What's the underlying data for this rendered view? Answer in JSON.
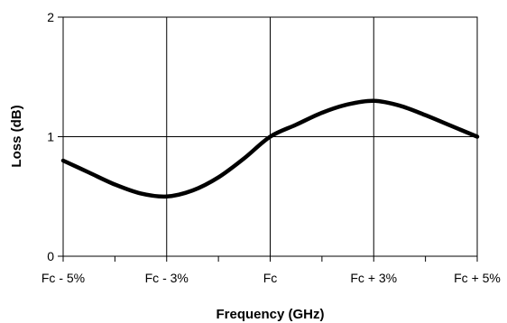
{
  "chart_data": {
    "type": "line",
    "title": "",
    "xlabel": "Frequency (GHz)",
    "ylabel": "Loss (dB)",
    "x_tick_labels": [
      "Fc - 5%",
      "Fc - 3%",
      "Fc",
      "Fc + 3%",
      "Fc + 5%"
    ],
    "y_tick_labels": [
      "0",
      "1",
      "2"
    ],
    "ylim": [
      0,
      2
    ],
    "grid": true,
    "legend": "none",
    "series": [
      {
        "color": "#000000",
        "points": [
          {
            "x": 0.0,
            "y": 0.8
          },
          {
            "x": 0.25,
            "y": 0.7
          },
          {
            "x": 0.5,
            "y": 0.6
          },
          {
            "x": 0.75,
            "y": 0.525
          },
          {
            "x": 1.0,
            "y": 0.5
          },
          {
            "x": 1.25,
            "y": 0.55
          },
          {
            "x": 1.5,
            "y": 0.66
          },
          {
            "x": 1.75,
            "y": 0.82
          },
          {
            "x": 2.0,
            "y": 1.0
          },
          {
            "x": 2.25,
            "y": 1.1
          },
          {
            "x": 2.5,
            "y": 1.2
          },
          {
            "x": 2.75,
            "y": 1.27
          },
          {
            "x": 3.0,
            "y": 1.3
          },
          {
            "x": 3.25,
            "y": 1.26
          },
          {
            "x": 3.5,
            "y": 1.18
          },
          {
            "x": 3.75,
            "y": 1.09
          },
          {
            "x": 4.0,
            "y": 1.0
          }
        ]
      }
    ]
  }
}
